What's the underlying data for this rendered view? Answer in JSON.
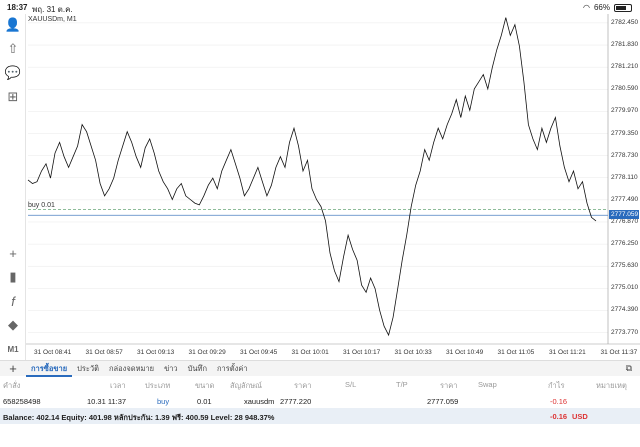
{
  "status_bar": {
    "time": "18:37",
    "date": "พฤ. 31 ต.ค.",
    "battery": "66%"
  },
  "chart": {
    "symbol_label": "XAUUSDm, M1",
    "buy_line_label": "buy 0.01",
    "current_price_tag": "2777.059",
    "y_ticks": [
      "2782.450",
      "2781.830",
      "2781.210",
      "2780.590",
      "2779.970",
      "2779.350",
      "2778.730",
      "2778.110",
      "2777.490",
      "2776.870",
      "2776.250",
      "2775.630",
      "2775.010",
      "2774.390",
      "2773.770"
    ],
    "x_ticks": [
      "31 Oct 08:41",
      "31 Oct 08:57",
      "31 Oct 09:13",
      "31 Oct 09:29",
      "31 Oct 09:45",
      "31 Oct 10:01",
      "31 Oct 10:17",
      "31 Oct 10:33",
      "31 Oct 10:49",
      "31 Oct 11:05",
      "31 Oct 11:21",
      "31 Oct 11:37"
    ],
    "colors": {
      "line": "#111111",
      "buy_line": "#6aa87a",
      "bid_line": "#4b7fc1",
      "tag": "#2a6bbd",
      "grid": "#e8e8e8"
    }
  },
  "chart_data": {
    "type": "line",
    "ylim": [
      2773.45,
      2782.7
    ],
    "buy_price": 2777.22,
    "bid_price": 2777.059,
    "values": [
      2778.05,
      2777.95,
      2778.0,
      2778.3,
      2778.5,
      2778.1,
      2778.8,
      2779.1,
      2778.7,
      2778.4,
      2778.7,
      2779.0,
      2779.6,
      2779.4,
      2779.0,
      2778.6,
      2777.95,
      2777.6,
      2777.8,
      2778.1,
      2778.6,
      2779.0,
      2779.4,
      2779.1,
      2778.7,
      2778.4,
      2778.95,
      2779.2,
      2778.8,
      2778.3,
      2778.0,
      2777.8,
      2777.5,
      2777.8,
      2777.95,
      2777.6,
      2777.5,
      2777.4,
      2777.35,
      2777.6,
      2777.9,
      2778.1,
      2777.8,
      2778.3,
      2778.6,
      2778.9,
      2778.5,
      2778.1,
      2777.6,
      2777.8,
      2778.1,
      2778.4,
      2778.0,
      2777.6,
      2777.9,
      2778.4,
      2778.7,
      2778.4,
      2779.1,
      2779.5,
      2779.0,
      2778.3,
      2778.6,
      2777.8,
      2777.5,
      2777.3,
      2776.9,
      2776.0,
      2775.5,
      2775.2,
      2775.9,
      2776.5,
      2776.1,
      2775.8,
      2775.1,
      2774.9,
      2775.3,
      2775.0,
      2774.4,
      2773.95,
      2773.7,
      2774.2,
      2775.0,
      2775.8,
      2776.5,
      2777.3,
      2777.9,
      2778.3,
      2778.9,
      2778.6,
      2779.1,
      2779.5,
      2779.2,
      2779.6,
      2779.9,
      2780.3,
      2779.8,
      2780.4,
      2780.0,
      2780.6,
      2780.8,
      2781.0,
      2780.6,
      2781.2,
      2781.7,
      2782.1,
      2782.6,
      2782.1,
      2782.4,
      2781.8,
      2780.8,
      2779.6,
      2779.2,
      2778.9,
      2779.5,
      2779.1,
      2779.5,
      2779.8,
      2779.0,
      2778.4,
      2778.0,
      2778.3,
      2777.8,
      2778.0,
      2777.4,
      2777.0,
      2776.9
    ],
    "x_start": "31 Oct 08:37",
    "x_end": "31 Oct 11:39"
  },
  "left_toolbar": [
    "user-icon",
    "user-up-icon",
    "chat-icon",
    "add-indicator-icon",
    "crosshair-icon",
    "chart-type-icon",
    "function-icon",
    "objects-icon",
    "timeframe-label"
  ],
  "timeframe": "M1",
  "tabs": [
    "การซื้อขาย",
    "ประวัติ",
    "กล่องจดหมาย",
    "ข่าว",
    "บันทึก",
    "การตั้งค่า"
  ],
  "table": {
    "headers": [
      "คำสั่ง",
      "เวลา",
      "ประเภท",
      "ขนาด",
      "สัญลักษณ์",
      "ราคา",
      "S/L",
      "T/P",
      "ราคา",
      "Swap",
      "กำไร",
      "หมายเหตุ"
    ],
    "row": {
      "order": "658258498",
      "time": "10.31 11:37",
      "type": "buy",
      "volume": "0.01",
      "symbol": "xauusdm",
      "open_price": "2777.220",
      "price": "2777.059",
      "profit": "-0.16"
    }
  },
  "balance": {
    "text": "Balance: 402.14 Equity: 401.98 หลักประกัน: 1.39 ฟรี: 400.59 Level: 28 948.37%",
    "profit": "-0.16",
    "currency": "USD"
  }
}
